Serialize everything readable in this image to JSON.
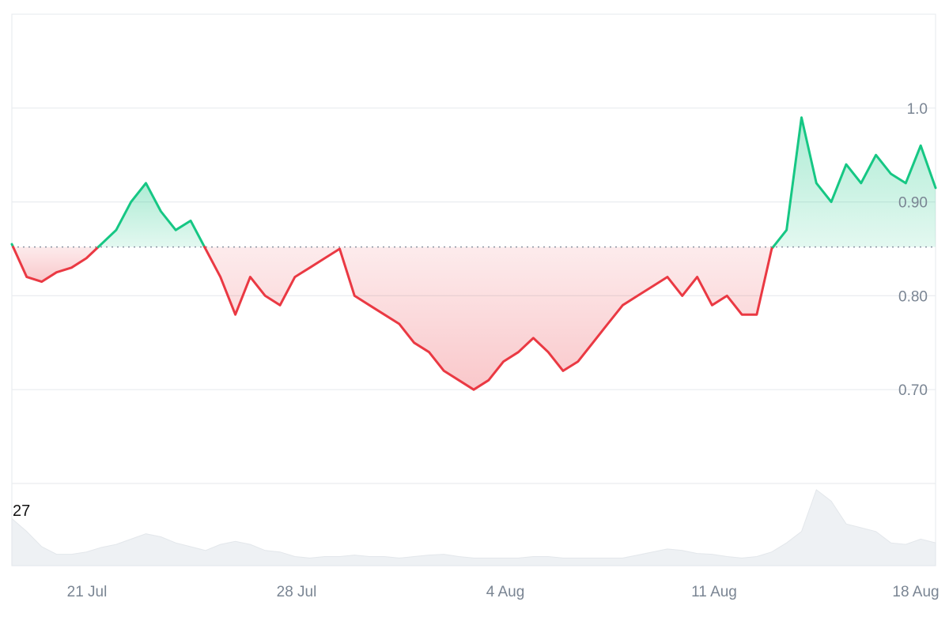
{
  "chart_data": {
    "type": "line",
    "title": "",
    "xlabel": "",
    "ylabel": "",
    "x_ticks": [
      "21 Jul",
      "28 Jul",
      "4 Aug",
      "11 Aug",
      "18 Aug"
    ],
    "y_ticks": [
      "0.70",
      "0.80",
      "0.90",
      "1.0"
    ],
    "ylim": [
      0.6,
      1.1
    ],
    "baseline": 0.852,
    "grid": true,
    "colors": {
      "above": "#16c784",
      "below": "#ea3943",
      "above_fill": "#d6f5e6",
      "below_fill": "#fbd8da",
      "grid": "#e9ecef",
      "volume": "#eef1f4",
      "baseline": "#8a94a3"
    },
    "series": [
      {
        "x": [
          "2025-07-18",
          "2025-07-18 12h",
          "2025-07-19",
          "2025-07-19 12h",
          "2025-07-20",
          "2025-07-20 12h",
          "2025-07-21",
          "2025-07-21 12h",
          "2025-07-22",
          "2025-07-22 12h",
          "2025-07-23",
          "2025-07-23 12h",
          "2025-07-24",
          "2025-07-24 12h",
          "2025-07-25",
          "2025-07-25 12h",
          "2025-07-26",
          "2025-07-26 12h",
          "2025-07-27",
          "2025-07-27 12h",
          "2025-07-28",
          "2025-07-28 12h",
          "2025-07-29",
          "2025-07-29 12h",
          "2025-07-30",
          "2025-07-30 12h",
          "2025-07-31",
          "2025-07-31 12h",
          "2025-08-01",
          "2025-08-01 12h",
          "2025-08-02",
          "2025-08-02 12h",
          "2025-08-03",
          "2025-08-03 12h",
          "2025-08-04",
          "2025-08-04 12h",
          "2025-08-05",
          "2025-08-05 12h",
          "2025-08-06",
          "2025-08-06 12h",
          "2025-08-07",
          "2025-08-07 12h",
          "2025-08-08",
          "2025-08-08 12h",
          "2025-08-09",
          "2025-08-09 12h",
          "2025-08-10",
          "2025-08-10 12h",
          "2025-08-11",
          "2025-08-11 12h",
          "2025-08-12",
          "2025-08-12 12h",
          "2025-08-13",
          "2025-08-13 12h",
          "2025-08-14",
          "2025-08-14 12h",
          "2025-08-15",
          "2025-08-15 12h",
          "2025-08-16",
          "2025-08-16 12h",
          "2025-08-17",
          "2025-08-17 12h",
          "2025-08-18"
        ],
        "values": [
          0.855,
          0.82,
          0.815,
          0.825,
          0.83,
          0.84,
          0.855,
          0.87,
          0.9,
          0.92,
          0.89,
          0.87,
          0.88,
          0.85,
          0.82,
          0.78,
          0.82,
          0.8,
          0.79,
          0.82,
          0.83,
          0.84,
          0.85,
          0.8,
          0.79,
          0.78,
          0.77,
          0.75,
          0.74,
          0.72,
          0.71,
          0.7,
          0.71,
          0.73,
          0.74,
          0.755,
          0.74,
          0.72,
          0.73,
          0.75,
          0.77,
          0.79,
          0.8,
          0.81,
          0.82,
          0.8,
          0.82,
          0.79,
          0.8,
          0.78,
          0.78,
          0.85,
          0.87,
          0.99,
          0.92,
          0.9,
          0.94,
          0.92,
          0.95,
          0.93,
          0.92,
          0.96,
          0.915
        ]
      }
    ],
    "volume": {
      "label": "27",
      "values": [
        0.62,
        0.45,
        0.25,
        0.15,
        0.15,
        0.18,
        0.24,
        0.28,
        0.35,
        0.42,
        0.38,
        0.3,
        0.25,
        0.2,
        0.28,
        0.32,
        0.28,
        0.2,
        0.18,
        0.12,
        0.1,
        0.12,
        0.12,
        0.14,
        0.12,
        0.12,
        0.1,
        0.12,
        0.14,
        0.15,
        0.12,
        0.1,
        0.1,
        0.1,
        0.1,
        0.12,
        0.12,
        0.1,
        0.1,
        0.1,
        0.1,
        0.1,
        0.14,
        0.18,
        0.22,
        0.2,
        0.16,
        0.15,
        0.12,
        0.1,
        0.12,
        0.18,
        0.3,
        0.45,
        1.0,
        0.85,
        0.55,
        0.5,
        0.45,
        0.3,
        0.28,
        0.35,
        0.3
      ]
    }
  }
}
